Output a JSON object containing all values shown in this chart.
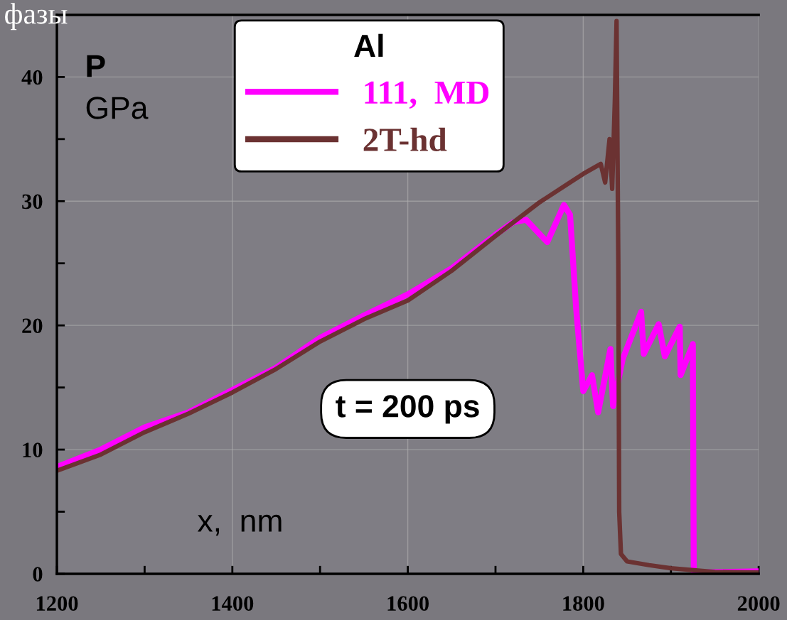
{
  "chart_data": {
    "type": "line",
    "ylabel": "P\nGPa",
    "xlabel": "x,  nm",
    "legend_title": "Al",
    "annotations": [
      "t = 200 ps",
      "фазы"
    ],
    "xlim": [
      1200,
      2000
    ],
    "ylim": [
      0,
      45
    ],
    "xticks": [
      1200,
      {
        "value": 1300,
        "label": null
      },
      1400,
      {
        "value": 1500,
        "label": null
      },
      1600,
      {
        "value": 1700,
        "label": null
      },
      1800,
      {
        "value": 1900,
        "label": null
      },
      2000
    ],
    "yticks": [
      0,
      {
        "value": 5,
        "label": null
      },
      10,
      {
        "value": 15,
        "label": null
      },
      20,
      {
        "value": 25,
        "label": null
      },
      30,
      {
        "value": 35,
        "label": null
      },
      40
    ],
    "grid": true,
    "legend": "top",
    "marker": "none",
    "line_style": "solid",
    "series": [
      {
        "name": "111,  MD",
        "color": "#ff00ff",
        "x": [
          1200,
          1250,
          1300,
          1350,
          1400,
          1450,
          1500,
          1550,
          1600,
          1650,
          1700,
          1720,
          1735,
          1759,
          1778,
          1785,
          1792,
          1800,
          1810,
          1817,
          1831,
          1834,
          1845,
          1866,
          1869,
          1886,
          1893,
          1910,
          1911,
          1925,
          1926,
          2000
        ],
        "values": [
          8.6,
          10.0,
          11.8,
          13.0,
          14.8,
          16.6,
          19.0,
          20.8,
          22.5,
          24.6,
          27.3,
          28.3,
          28.5,
          26.7,
          29.7,
          28.9,
          21.3,
          14.7,
          16.0,
          13.0,
          18.1,
          13.5,
          17.3,
          21.1,
          17.7,
          20.1,
          17.5,
          19.9,
          16.0,
          18.5,
          0.1,
          0.2
        ]
      },
      {
        "name": "2T-hd",
        "color": "#6b3232",
        "x": [
          1200,
          1250,
          1300,
          1350,
          1400,
          1450,
          1500,
          1550,
          1600,
          1650,
          1700,
          1750,
          1800,
          1820,
          1825,
          1830,
          1833,
          1836,
          1838,
          1840,
          1841,
          1843,
          1850,
          1875,
          1900,
          1950,
          2000
        ],
        "values": [
          8.3,
          9.6,
          11.4,
          12.9,
          14.6,
          16.5,
          18.7,
          20.5,
          22.0,
          24.4,
          27.2,
          29.9,
          32.2,
          33.0,
          31.5,
          35.0,
          31.0,
          38.0,
          44.5,
          25.0,
          5.0,
          1.6,
          1.0,
          0.7,
          0.45,
          0.15,
          0.1
        ]
      }
    ]
  }
}
